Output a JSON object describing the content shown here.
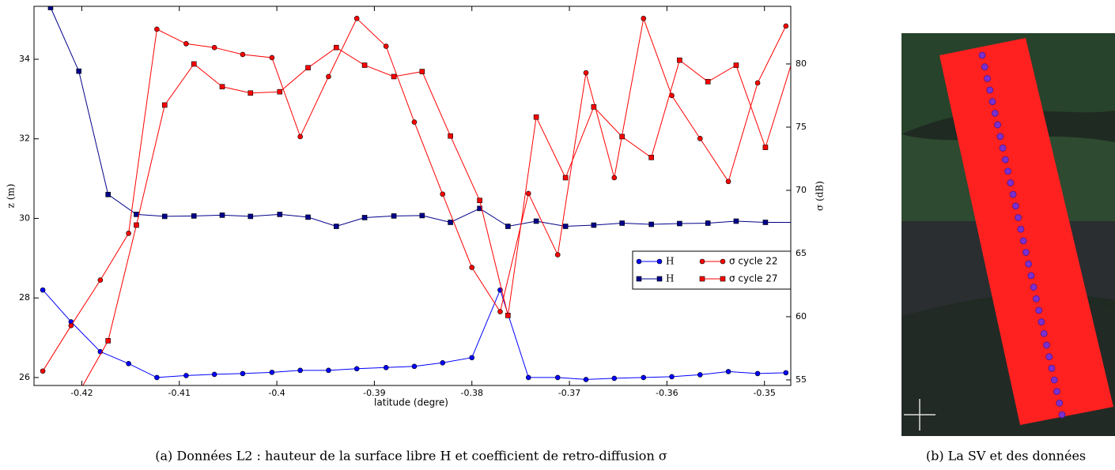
{
  "chart_data": {
    "type": "line",
    "xlabel": "latitude (degre)",
    "ylabel": "z (m)",
    "y2label": "σ (dB)",
    "caption": "(a) Données L2 : hauteur de la surface libre H et coefficient de retro-diffusion σ",
    "image_caption": "(b) La SV et des données",
    "xlim": [
      -0.4249,
      -0.3473
    ],
    "ylim": [
      25.8,
      35.33
    ],
    "y2lim": [
      54.56,
      84.56
    ],
    "xticks": [
      -0.42,
      -0.41,
      -0.4,
      -0.39,
      -0.38,
      -0.37,
      -0.36,
      -0.35
    ],
    "yticks": [
      26,
      28,
      30,
      32,
      34
    ],
    "y2ticks": [
      55,
      60,
      65,
      70,
      75,
      80
    ],
    "legend": "center right",
    "series": [
      {
        "name": "H",
        "color": "#0000ff",
        "marker": "circle",
        "x": [
          -0.424,
          -0.4211,
          -0.4181,
          -0.4152,
          -0.4123,
          -0.4093,
          -0.4064,
          -0.4035,
          -0.4005,
          -0.3976,
          -0.3947,
          -0.3918,
          -0.3888,
          -0.3859,
          -0.383,
          -0.38,
          -0.3771,
          -0.3742,
          -0.3712,
          -0.3683,
          -0.3654,
          -0.3624,
          -0.3595,
          -0.3566,
          -0.3537,
          -0.3507,
          -0.3478
        ],
        "values": [
          28.2,
          27.4,
          26.65,
          26.35,
          26.0,
          26.05,
          26.08,
          26.1,
          26.13,
          26.18,
          26.18,
          26.22,
          26.25,
          26.28,
          26.37,
          26.5,
          28.2,
          26.0,
          26.0,
          25.95,
          25.98,
          26.0,
          26.02,
          26.07,
          26.15,
          26.1,
          26.12
        ]
      },
      {
        "name": "H",
        "color": "#00008b",
        "marker": "square",
        "x": [
          -0.4232,
          -0.4203,
          -0.4173,
          -0.4144,
          -0.4115,
          -0.4085,
          -0.4056,
          -0.4027,
          -0.3997,
          -0.3968,
          -0.3939,
          -0.391,
          -0.388,
          -0.3851,
          -0.3822,
          -0.3792,
          -0.3763,
          -0.3734,
          -0.3704,
          -0.3675,
          -0.3646,
          -0.3616,
          -0.3587,
          -0.3558,
          -0.3529,
          -0.3499,
          -0.347
        ],
        "values": [
          35.3,
          33.7,
          30.6,
          30.1,
          30.05,
          30.06,
          30.08,
          30.05,
          30.1,
          30.03,
          29.8,
          30.02,
          30.06,
          30.07,
          29.9,
          30.25,
          29.8,
          29.93,
          29.8,
          29.83,
          29.88,
          29.85,
          29.87,
          29.88,
          29.93,
          29.9,
          29.9
        ]
      },
      {
        "name": "σ cycle 22",
        "color": "#ff0000",
        "marker": "circle",
        "axis": "y2",
        "x": [
          -0.424,
          -0.4211,
          -0.4181,
          -0.4152,
          -0.4123,
          -0.4093,
          -0.4064,
          -0.4035,
          -0.4005,
          -0.3976,
          -0.3947,
          -0.3918,
          -0.3888,
          -0.3859,
          -0.383,
          -0.38,
          -0.3771,
          -0.3742,
          -0.3712,
          -0.3683,
          -0.3654,
          -0.3624,
          -0.3595,
          -0.3566,
          -0.3537,
          -0.3507,
          -0.3478
        ],
        "values": [
          55.7,
          59.3,
          62.9,
          66.6,
          82.75,
          81.6,
          81.3,
          80.75,
          80.5,
          74.25,
          79.0,
          83.6,
          81.4,
          75.4,
          69.7,
          63.9,
          60.4,
          69.75,
          64.9,
          79.3,
          71.0,
          83.6,
          77.5,
          74.1,
          70.7,
          78.5,
          83.0
        ]
      },
      {
        "name": "σ cycle 27",
        "color": "#ff0000",
        "marker": "square",
        "axis": "y2",
        "x": [
          -0.4232,
          -0.4203,
          -0.4173,
          -0.4144,
          -0.4115,
          -0.4085,
          -0.4056,
          -0.4027,
          -0.3997,
          -0.3968,
          -0.3939,
          -0.391,
          -0.388,
          -0.3851,
          -0.3822,
          -0.3792,
          -0.3763,
          -0.3734,
          -0.3704,
          -0.3675,
          -0.3646,
          -0.3616,
          -0.3587,
          -0.3558,
          -0.3529,
          -0.3499,
          -0.347
        ],
        "values": [
          51.5,
          54.0,
          58.1,
          67.25,
          76.75,
          80.0,
          78.2,
          77.7,
          77.8,
          79.7,
          81.3,
          79.9,
          79.0,
          79.4,
          74.3,
          69.2,
          60.1,
          75.8,
          71.0,
          76.6,
          74.25,
          72.6,
          80.3,
          78.6,
          79.9,
          73.4,
          80.6
        ]
      }
    ]
  }
}
